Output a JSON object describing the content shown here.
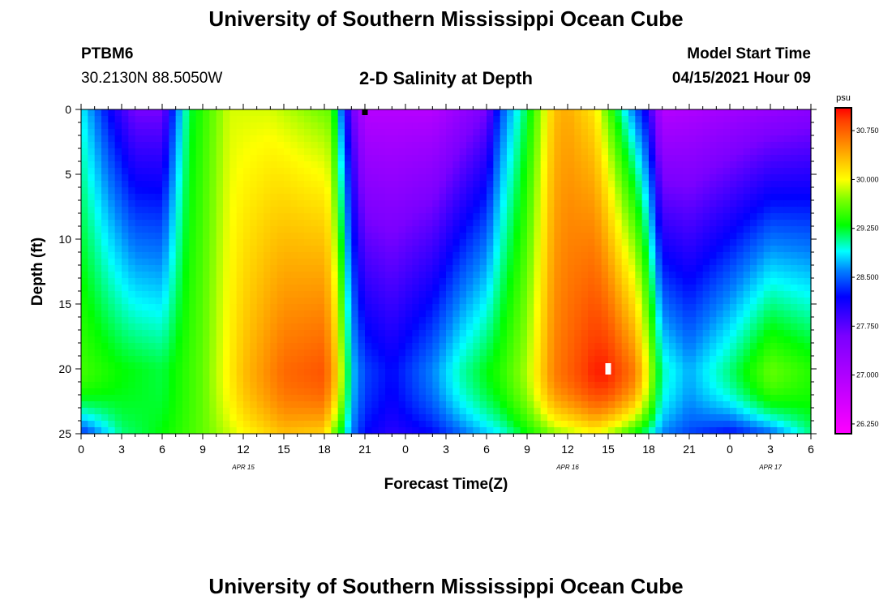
{
  "header": {
    "title": "University of Southern Mississippi Ocean Cube",
    "station_id": "PTBM6",
    "coordinates": "30.2130N  88.5050W",
    "plot_title": "2-D Salinity at Depth",
    "model_start_label": "Model Start Time",
    "model_start_time": "04/15/2021 Hour 09"
  },
  "footer": {
    "title": "University of Southern Mississippi Ocean Cube"
  },
  "chart_data": {
    "type": "heatmap",
    "title": "2-D Salinity at Depth",
    "xlabel": "Forecast Time(Z)",
    "ylabel": "Depth (ft)",
    "x_hours_since_apr15_00": [
      0,
      3,
      6,
      9,
      12,
      15,
      18,
      21,
      24,
      27,
      30,
      33,
      36,
      39,
      42,
      45,
      48,
      51,
      54
    ],
    "x_tick_labels": [
      "0",
      "3",
      "6",
      "9",
      "12",
      "15",
      "18",
      "21",
      "0",
      "3",
      "6",
      "9",
      "12",
      "15",
      "18",
      "21",
      "0",
      "3",
      "6"
    ],
    "x_date_labels": [
      {
        "label": "APR 15",
        "hour": 12
      },
      {
        "label": "APR 16",
        "hour": 36
      },
      {
        "label": "APR 17",
        "hour": 51
      }
    ],
    "y_ticks": [
      0,
      5,
      10,
      15,
      20,
      25
    ],
    "ylim": [
      0,
      25
    ],
    "xlim": [
      0,
      54
    ],
    "y_inverted": true,
    "colorbar": {
      "unit": "psu",
      "tick_values": [
        26.25,
        27.0,
        27.75,
        28.5,
        29.25,
        30.0,
        30.75
      ],
      "tick_labels": [
        "26.250",
        "27.000",
        "27.750",
        "28.500",
        "29.250",
        "30.000",
        "30.750"
      ],
      "range": [
        26.1,
        31.1
      ],
      "stops": [
        {
          "value": 26.1,
          "color": "#ff00ff"
        },
        {
          "value": 26.8,
          "color": "#c000ff"
        },
        {
          "value": 27.6,
          "color": "#7a00ff"
        },
        {
          "value": 28.2,
          "color": "#0000ff"
        },
        {
          "value": 28.6,
          "color": "#0080ff"
        },
        {
          "value": 28.9,
          "color": "#00ffff"
        },
        {
          "value": 29.3,
          "color": "#00ff00"
        },
        {
          "value": 29.7,
          "color": "#80ff00"
        },
        {
          "value": 30.0,
          "color": "#ffff00"
        },
        {
          "value": 30.3,
          "color": "#ffc000"
        },
        {
          "value": 30.6,
          "color": "#ff8000"
        },
        {
          "value": 30.9,
          "color": "#ff4000"
        },
        {
          "value": 31.1,
          "color": "#ff0000"
        }
      ]
    },
    "surface_salinity_by_hour": [
      [
        0,
        28.9
      ],
      [
        2,
        28.2
      ],
      [
        4,
        27.6
      ],
      [
        6,
        27.6
      ],
      [
        7,
        28.5
      ],
      [
        8,
        29.2
      ],
      [
        11,
        29.9
      ],
      [
        14,
        29.9
      ],
      [
        17,
        29.7
      ],
      [
        18.5,
        29.6
      ],
      [
        19.5,
        28.2
      ],
      [
        21,
        26.9
      ],
      [
        26,
        26.9
      ],
      [
        30,
        27.6
      ],
      [
        31,
        28.4
      ],
      [
        33,
        29.2
      ],
      [
        35,
        30.3
      ],
      [
        36,
        30.4
      ],
      [
        38,
        30.1
      ],
      [
        40,
        29.0
      ],
      [
        42,
        28.0
      ],
      [
        43,
        26.9
      ],
      [
        54,
        27.4
      ]
    ],
    "depth20_salinity_by_hour": [
      [
        0,
        29.5
      ],
      [
        3,
        29.3
      ],
      [
        6,
        29.2
      ],
      [
        9,
        29.6
      ],
      [
        12,
        30.3
      ],
      [
        15,
        30.7
      ],
      [
        18,
        30.8
      ],
      [
        19,
        30.2
      ],
      [
        20,
        28.8
      ],
      [
        21,
        28.4
      ],
      [
        23,
        28.2
      ],
      [
        26,
        28.6
      ],
      [
        28,
        29.0
      ],
      [
        31,
        29.4
      ],
      [
        33,
        29.8
      ],
      [
        35,
        30.6
      ],
      [
        38,
        31.0
      ],
      [
        39,
        31.0
      ],
      [
        41,
        30.6
      ],
      [
        42,
        29.9
      ],
      [
        43,
        29.0
      ],
      [
        45,
        28.7
      ],
      [
        48,
        29.1
      ],
      [
        51,
        29.6
      ],
      [
        54,
        29.4
      ]
    ],
    "bottom_salinity_by_hour": [
      [
        0,
        28.3
      ],
      [
        3,
        29.1
      ],
      [
        6,
        29.3
      ],
      [
        9,
        29.6
      ],
      [
        12,
        30.0
      ],
      [
        15,
        30.3
      ],
      [
        18,
        30.2
      ],
      [
        19,
        29.4
      ],
      [
        20,
        28.6
      ],
      [
        21,
        28.2
      ],
      [
        23,
        28.0
      ],
      [
        26,
        28.2
      ],
      [
        28,
        28.5
      ],
      [
        31,
        28.9
      ],
      [
        33,
        29.3
      ],
      [
        35,
        29.7
      ],
      [
        38,
        30.0
      ],
      [
        40,
        29.6
      ],
      [
        42,
        29.0
      ],
      [
        43,
        28.6
      ],
      [
        45,
        28.4
      ],
      [
        48,
        28.2
      ],
      [
        51,
        28.5
      ],
      [
        54,
        29.1
      ]
    ],
    "markers": [
      {
        "name": "model-start-marker",
        "hour": 21,
        "depth": 0.2,
        "color": "#000000"
      },
      {
        "name": "current-time-marker",
        "hour": 39,
        "depth": 20,
        "color": "#ffffff"
      }
    ]
  }
}
